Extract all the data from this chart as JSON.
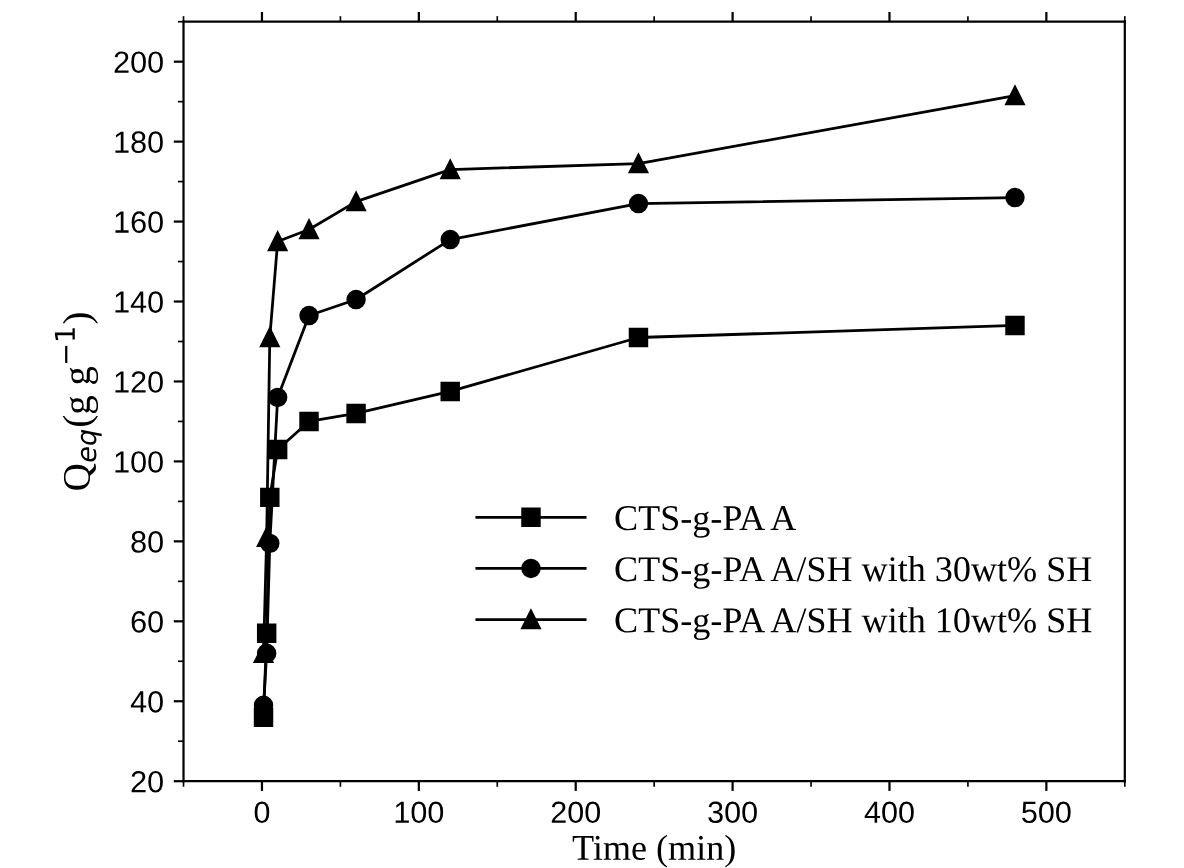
{
  "chart_data": {
    "type": "line",
    "xlabel": "Time (min)",
    "ylabel": "Q$_{eq}$(g g$^{−1}$)",
    "xlim": [
      -50,
      550
    ],
    "xticks": [
      0,
      100,
      200,
      300,
      400,
      500
    ],
    "ylim": [
      20,
      210
    ],
    "yticks": [
      20,
      40,
      60,
      80,
      100,
      120,
      140,
      160,
      180,
      200
    ],
    "grid": false,
    "legend": "center right",
    "line_style": "solid",
    "series": [
      {
        "name": "CTS-g-PA A",
        "color": "#000000",
        "marker": "square",
        "x": [
          1,
          3,
          5,
          10,
          30,
          60,
          120,
          240,
          480
        ],
        "values": [
          36,
          57,
          91,
          103,
          110,
          112,
          117.5,
          131,
          134
        ]
      },
      {
        "name": "CTS-g-PA A/SH with 30wt% SH",
        "color": "#000000",
        "marker": "circle",
        "x": [
          1,
          3,
          5,
          10,
          30,
          60,
          120,
          240,
          480
        ],
        "values": [
          39,
          52,
          79.5,
          116,
          136.5,
          140.5,
          155.5,
          164.5,
          166
        ]
      },
      {
        "name": "CTS-g-PA A/SH with 10wt% SH",
        "color": "#000000",
        "marker": "triangle",
        "x": [
          1,
          3,
          5,
          10,
          30,
          60,
          120,
          240,
          480
        ],
        "values": [
          52,
          81,
          131,
          155,
          158,
          165,
          173,
          174.5,
          191.5
        ]
      }
    ]
  }
}
